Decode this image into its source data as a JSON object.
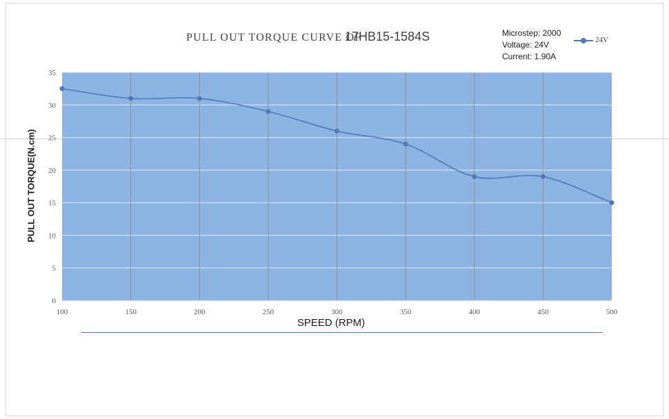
{
  "title": {
    "part1": "PULL OUT TORQUE CURVE OF",
    "part2": "17HB15-1584S"
  },
  "info": {
    "microstep": "Microstep: 2000",
    "voltage": "Voltage: 24V",
    "current": "Current: 1.90A"
  },
  "colors": {
    "plot_bg": "#8db3e2",
    "series": "#4f78b8",
    "grid_h": "#e6eef8",
    "grid_v": "#8a8f96"
  },
  "chart_data": {
    "type": "line",
    "title": "PULL OUT TORQUE CURVE OF 17HB15-1584S",
    "xlabel": "SPEED (RPM)",
    "ylabel": "PULL OUT TORQUE(N.cm)",
    "x": [
      100,
      150,
      200,
      250,
      300,
      350,
      400,
      450,
      500
    ],
    "series": [
      {
        "name": "24V",
        "values": [
          32.5,
          31,
          31,
          29,
          26,
          24,
          19,
          19,
          15
        ]
      }
    ],
    "xlim": [
      100,
      500
    ],
    "ylim": [
      0,
      35
    ],
    "yticks": [
      0,
      5,
      10,
      15,
      20,
      25,
      30,
      35
    ],
    "xticks": [
      100,
      150,
      200,
      250,
      300,
      350,
      400,
      450,
      500
    ],
    "grid": true,
    "legend": "top-right"
  }
}
